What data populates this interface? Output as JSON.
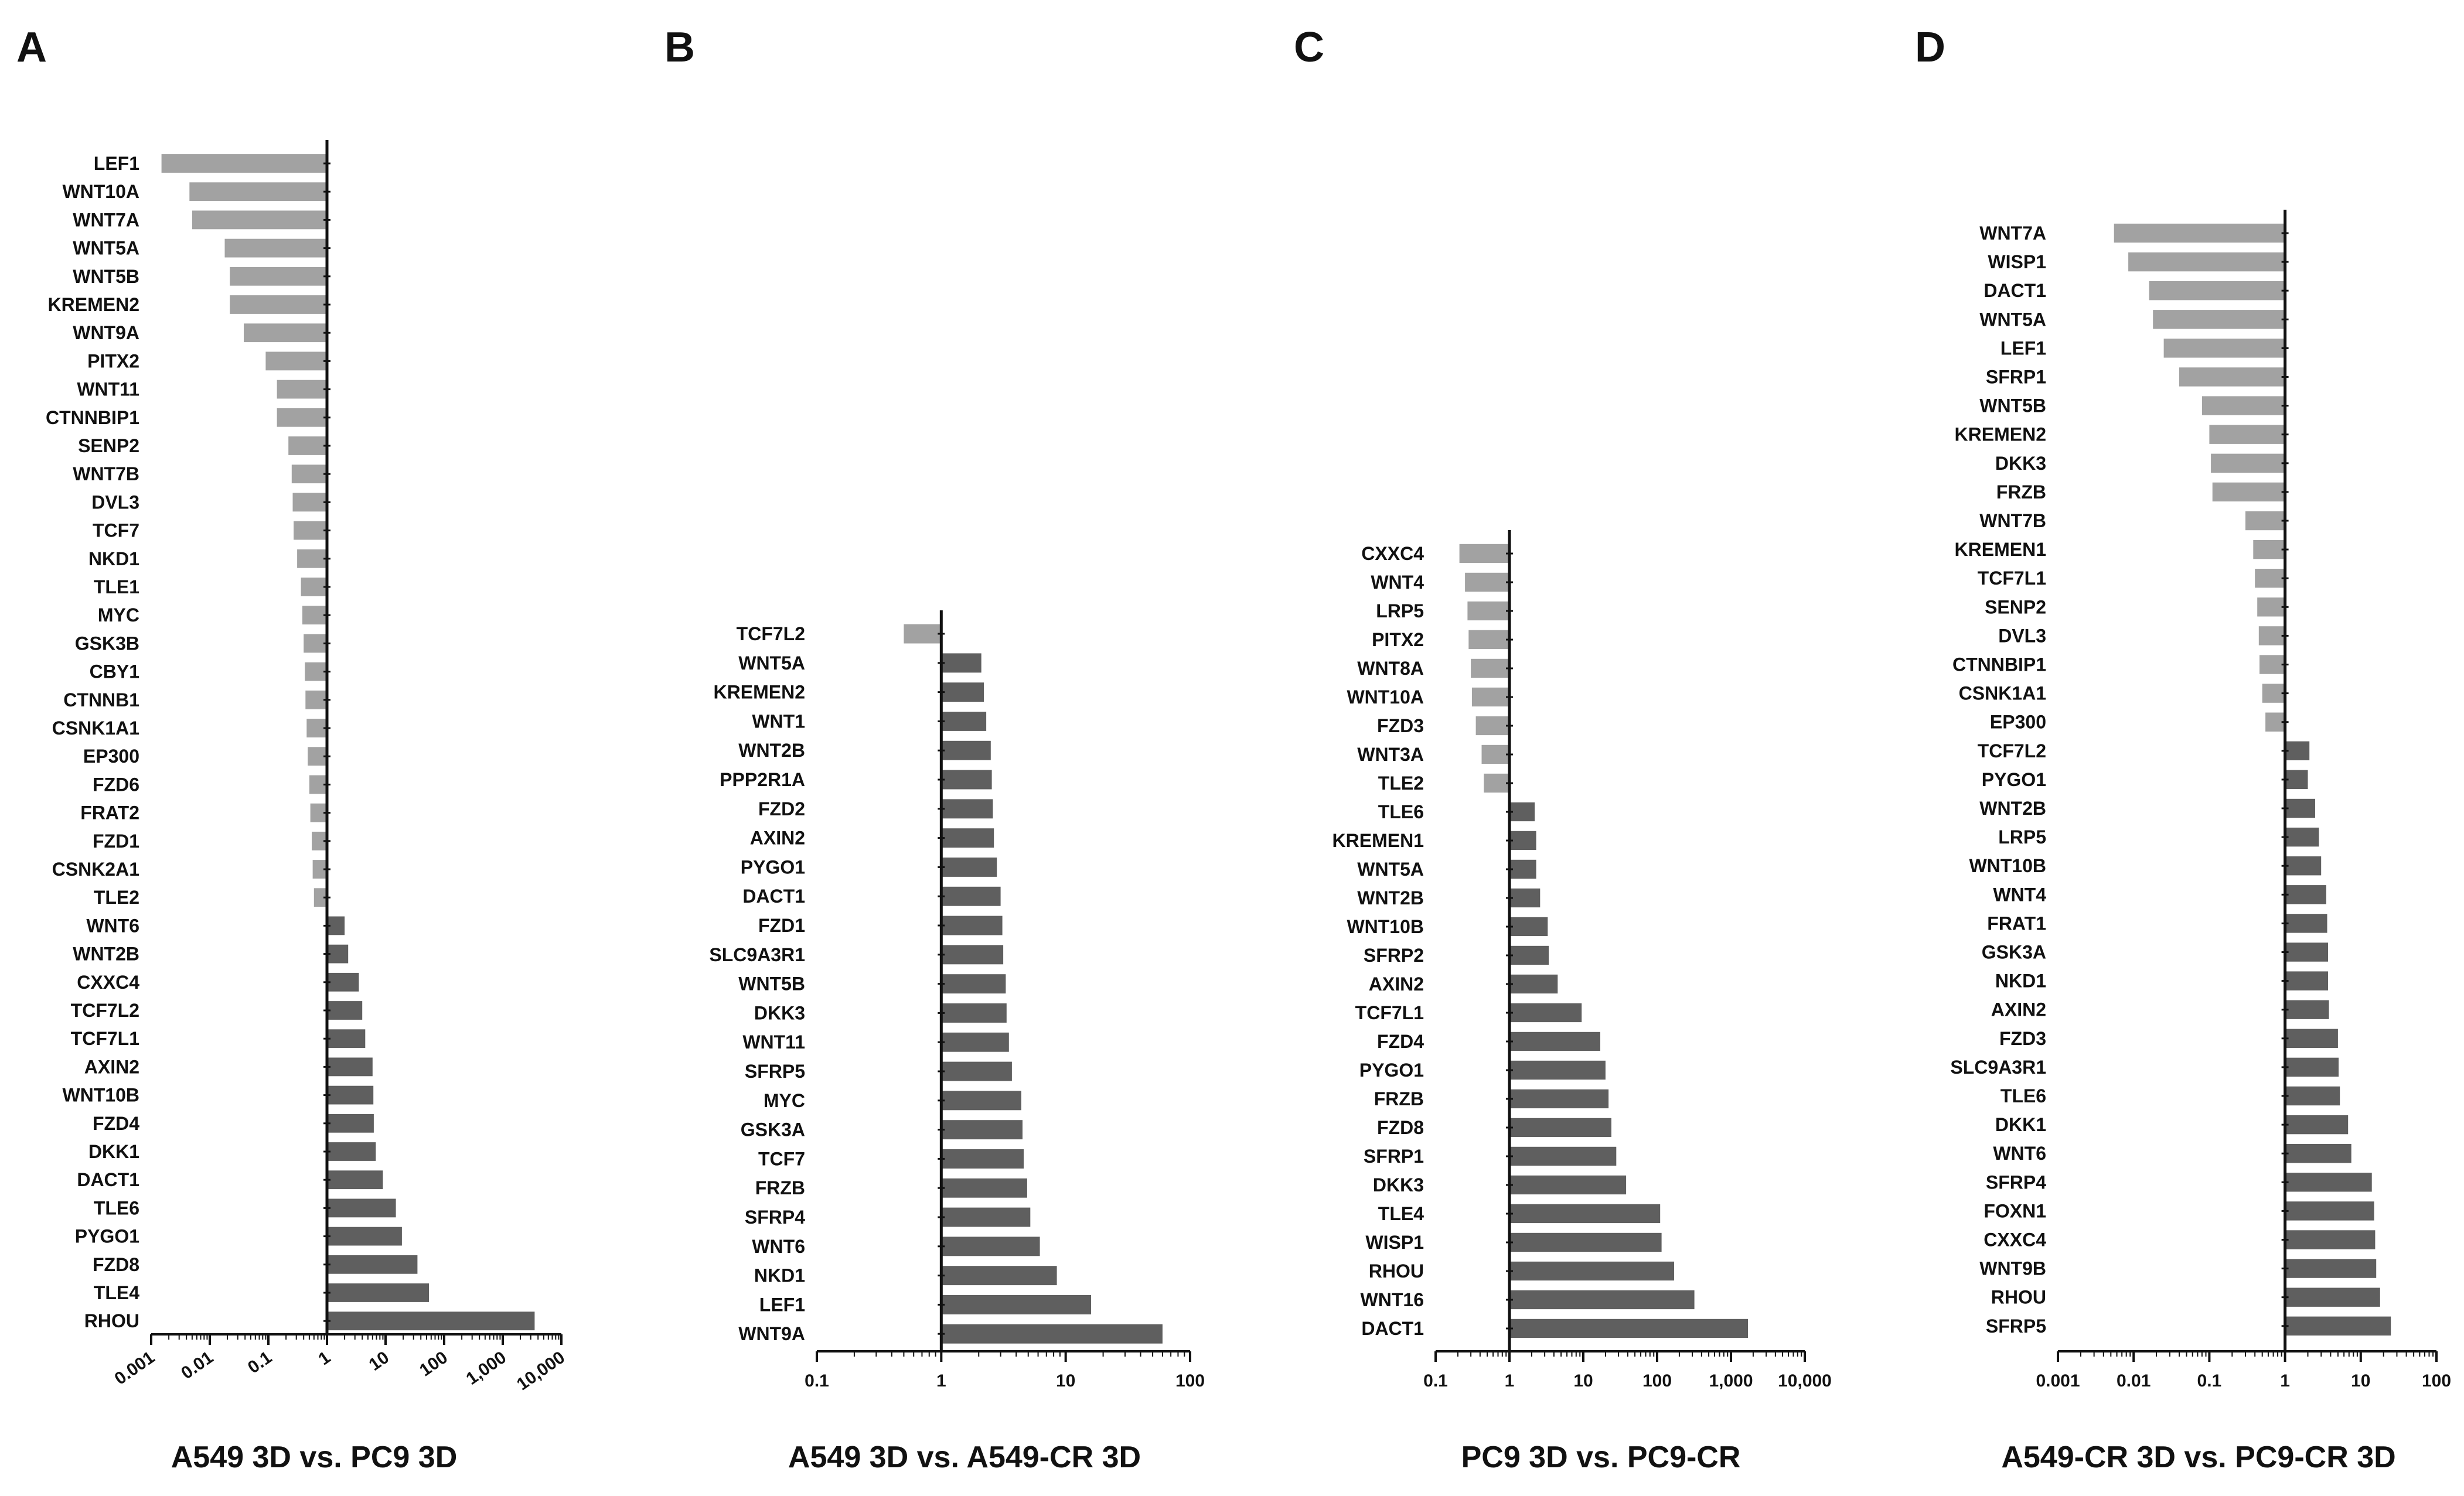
{
  "chart_data": [
    {
      "panel": "A",
      "type": "bar",
      "orientation": "horizontal",
      "xscale": "log",
      "xlabel": "A549 3D vs. PC9 3D",
      "xlim": [
        0.001,
        10000
      ],
      "xticks": [
        "0.001",
        "0.01",
        "0.1",
        "1",
        "10",
        "100",
        "1,000",
        "10,000"
      ],
      "categories": [
        "LEF1",
        "WNT10A",
        "WNT7A",
        "WNT5A",
        "WNT5B",
        "KREMEN2",
        "WNT9A",
        "PITX2",
        "WNT11",
        "CTNNBIP1",
        "SENP2",
        "WNT7B",
        "DVL3",
        "TCF7",
        "NKD1",
        "TLE1",
        "MYC",
        "GSK3B",
        "CBY1",
        "CTNNB1",
        "CSNK1A1",
        "EP300",
        "FZD6",
        "FRAT2",
        "FZD1",
        "CSNK2A1",
        "TLE2",
        "WNT6",
        "WNT2B",
        "CXXC4",
        "TCF7L2",
        "TCF7L1",
        "AXIN2",
        "WNT10B",
        "FZD4",
        "DKK1",
        "DACT1",
        "TLE6",
        "PYGO1",
        "FZD8",
        "TLE4",
        "RHOU"
      ],
      "values": [
        0.0015,
        0.0045,
        0.005,
        0.018,
        0.022,
        0.022,
        0.038,
        0.09,
        0.14,
        0.14,
        0.22,
        0.25,
        0.26,
        0.27,
        0.31,
        0.36,
        0.38,
        0.4,
        0.42,
        0.43,
        0.45,
        0.47,
        0.5,
        0.52,
        0.55,
        0.57,
        0.6,
        2.0,
        2.3,
        3.5,
        4.0,
        4.5,
        6.0,
        6.2,
        6.3,
        6.8,
        9.0,
        15,
        19,
        35,
        55,
        3500
      ]
    },
    {
      "panel": "B",
      "type": "bar",
      "orientation": "horizontal",
      "xscale": "log",
      "xlabel": "A549 3D vs. A549-CR 3D",
      "xlim": [
        0.1,
        100
      ],
      "xticks": [
        "0.1",
        "1",
        "10",
        "100"
      ],
      "categories": [
        "TCF7L2",
        "WNT5A",
        "KREMEN2",
        "WNT1",
        "WNT2B",
        "PPP2R1A",
        "FZD2",
        "AXIN2",
        "PYGO1",
        "DACT1",
        "FZD1",
        "SLC9A3R1",
        "WNT5B",
        "DKK3",
        "WNT11",
        "SFRP5",
        "MYC",
        "GSK3A",
        "TCF7",
        "FRZB",
        "SFRP4",
        "WNT6",
        "NKD1",
        "LEF1",
        "WNT9A"
      ],
      "values": [
        0.5,
        2.1,
        2.2,
        2.3,
        2.5,
        2.55,
        2.6,
        2.65,
        2.8,
        3.0,
        3.1,
        3.15,
        3.3,
        3.35,
        3.5,
        3.7,
        4.4,
        4.5,
        4.6,
        4.9,
        5.2,
        6.2,
        8.5,
        16,
        60
      ]
    },
    {
      "panel": "C",
      "type": "bar",
      "orientation": "horizontal",
      "xscale": "log",
      "xlabel": "PC9 3D vs. PC9-CR",
      "xlim": [
        0.1,
        10000
      ],
      "xticks": [
        "0.1",
        "1",
        "10",
        "100",
        "1,000",
        "10,000"
      ],
      "categories": [
        "CXXC4",
        "WNT4",
        "LRP5",
        "PITX2",
        "WNT8A",
        "WNT10A",
        "FZD3",
        "WNT3A",
        "TLE2",
        "TLE6",
        "KREMEN1",
        "WNT5A",
        "WNT2B",
        "WNT10B",
        "SFRP2",
        "AXIN2",
        "TCF7L1",
        "FZD4",
        "PYGO1",
        "FRZB",
        "FZD8",
        "SFRP1",
        "DKK3",
        "TLE4",
        "WISP1",
        "RHOU",
        "WNT16",
        "DACT1"
      ],
      "values": [
        0.21,
        0.25,
        0.27,
        0.28,
        0.3,
        0.31,
        0.35,
        0.42,
        0.45,
        2.2,
        2.3,
        2.3,
        2.6,
        3.3,
        3.4,
        4.5,
        9.5,
        17,
        20,
        22,
        24,
        28,
        38,
        110,
        115,
        170,
        320,
        1700
      ]
    },
    {
      "panel": "D",
      "type": "bar",
      "orientation": "horizontal",
      "xscale": "log",
      "xlabel": "A549-CR 3D vs. PC9-CR 3D",
      "xlim": [
        0.001,
        100
      ],
      "xticks": [
        "0.001",
        "0.01",
        "0.1",
        "1",
        "10",
        "100"
      ],
      "categories": [
        "WNT7A",
        "WISP1",
        "DACT1",
        "WNT5A",
        "LEF1",
        "SFRP1",
        "WNT5B",
        "KREMEN2",
        "DKK3",
        "FRZB",
        "WNT7B",
        "KREMEN1",
        "TCF7L1",
        "SENP2",
        "DVL3",
        "CTNNBIP1",
        "CSNK1A1",
        "EP300",
        "TCF7L2",
        "PYGO1",
        "WNT2B",
        "LRP5",
        "WNT10B",
        "WNT4",
        "FRAT1",
        "GSK3A",
        "NKD1",
        "AXIN2",
        "FZD3",
        "SLC9A3R1",
        "TLE6",
        "DKK1",
        "WNT6",
        "SFRP4",
        "FOXN1",
        "CXXC4",
        "WNT9B",
        "RHOU",
        "SFRP5"
      ],
      "values": [
        0.0055,
        0.0085,
        0.016,
        0.018,
        0.025,
        0.04,
        0.08,
        0.1,
        0.105,
        0.11,
        0.3,
        0.38,
        0.4,
        0.43,
        0.45,
        0.46,
        0.5,
        0.55,
        2.1,
        2.0,
        2.5,
        2.8,
        3.0,
        3.5,
        3.6,
        3.7,
        3.7,
        3.8,
        5.0,
        5.1,
        5.3,
        6.8,
        7.5,
        14,
        15,
        15.5,
        16,
        18,
        25
      ]
    }
  ],
  "colors": {
    "negative": "#a2a2a2",
    "positive": "#5f5f5f",
    "axis": "#111111"
  }
}
